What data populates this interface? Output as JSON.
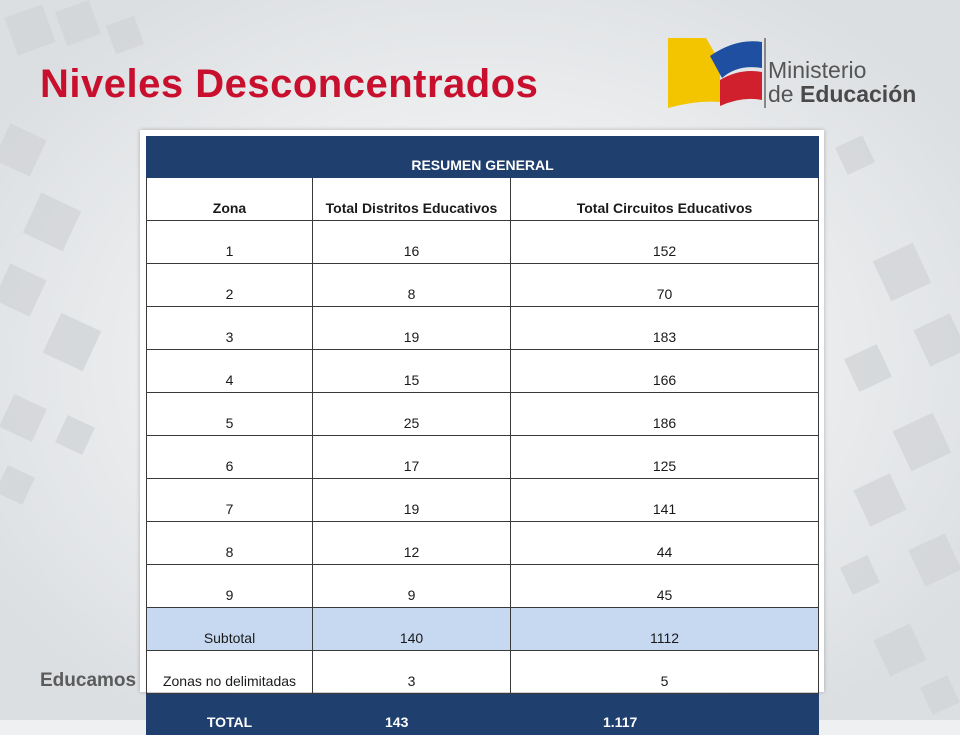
{
  "slide": {
    "title": "Niveles Desconcentrados",
    "footer": "Educamos"
  },
  "logo": {
    "line1": "Ministerio",
    "line2_prefix": "de ",
    "line2_bold": "Educación",
    "colors": {
      "yellow": "#f2c500",
      "blue": "#1f4fa0",
      "red": "#d0202e"
    }
  },
  "table": {
    "header": "RESUMEN GENERAL",
    "columns": [
      "Zona",
      "Total Distritos Educativos",
      "Total Circuitos Educativos"
    ],
    "rows": [
      [
        "1",
        "16",
        "152"
      ],
      [
        "2",
        "8",
        "70"
      ],
      [
        "3",
        "19",
        "183"
      ],
      [
        "4",
        "15",
        "166"
      ],
      [
        "5",
        "25",
        "186"
      ],
      [
        "6",
        "17",
        "125"
      ],
      [
        "7",
        "19",
        "141"
      ],
      [
        "8",
        "12",
        "44"
      ],
      [
        "9",
        "9",
        "45"
      ]
    ],
    "subtotal": [
      "Subtotal",
      "140",
      "1112"
    ],
    "undelimited": [
      "Zonas no delimitadas",
      "3",
      "5"
    ],
    "total": [
      "TOTAL",
      "143",
      "1.117"
    ]
  }
}
